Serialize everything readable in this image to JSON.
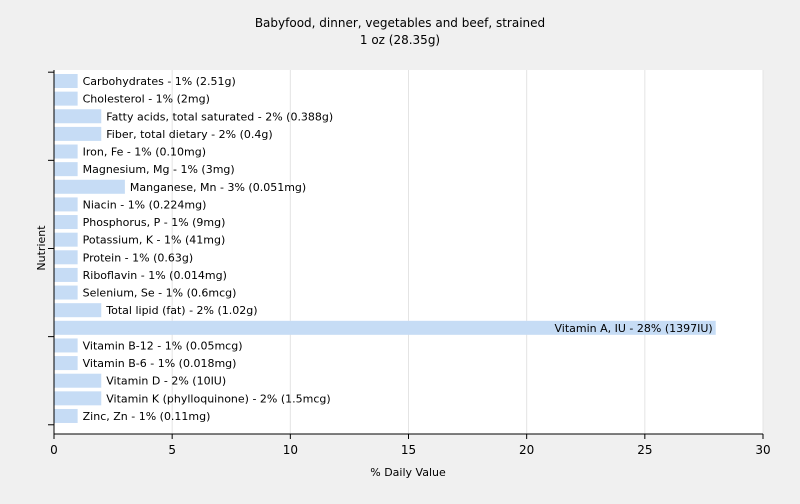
{
  "chart_data": {
    "type": "bar",
    "orientation": "horizontal",
    "title": "Babyfood, dinner, vegetables and beef, strained",
    "subtitle": "1 oz (28.35g)",
    "xlabel": "% Daily Value",
    "ylabel": "Nutrient",
    "xlim": [
      0,
      30
    ],
    "xticks": [
      0,
      5,
      10,
      15,
      20,
      25,
      30
    ],
    "grid": true,
    "bar_color": "#c6dcf5",
    "categories": [
      "Carbohydrates",
      "Cholesterol",
      "Fatty acids, total saturated",
      "Fiber, total dietary",
      "Iron, Fe",
      "Magnesium, Mg",
      "Manganese, Mn",
      "Niacin",
      "Phosphorus, P",
      "Potassium, K",
      "Protein",
      "Riboflavin",
      "Selenium, Se",
      "Total lipid (fat)",
      "Vitamin A, IU",
      "Vitamin B-12",
      "Vitamin B-6",
      "Vitamin D",
      "Vitamin K (phylloquinone)",
      "Zinc, Zn"
    ],
    "values": [
      1,
      1,
      2,
      2,
      1,
      1,
      3,
      1,
      1,
      1,
      1,
      1,
      1,
      2,
      28,
      1,
      1,
      2,
      2,
      1
    ],
    "labels": [
      "Carbohydrates - 1% (2.51g)",
      "Cholesterol - 1% (2mg)",
      "Fatty acids, total saturated - 2% (0.388g)",
      "Fiber, total dietary - 2% (0.4g)",
      "Iron, Fe - 1% (0.10mg)",
      "Magnesium, Mg - 1% (3mg)",
      "Manganese, Mn - 3% (0.051mg)",
      "Niacin - 1% (0.224mg)",
      "Phosphorus, P - 1% (9mg)",
      "Potassium, K - 1% (41mg)",
      "Protein - 1% (0.63g)",
      "Riboflavin - 1% (0.014mg)",
      "Selenium, Se - 1% (0.6mcg)",
      "Total lipid (fat) - 2% (1.02g)",
      "Vitamin A, IU - 28% (1397IU)",
      "Vitamin B-12 - 1% (0.05mcg)",
      "Vitamin B-6 - 1% (0.018mg)",
      "Vitamin D - 2% (10IU)",
      "Vitamin K (phylloquinone) - 2% (1.5mcg)",
      "Zinc, Zn - 1% (0.11mg)"
    ]
  }
}
